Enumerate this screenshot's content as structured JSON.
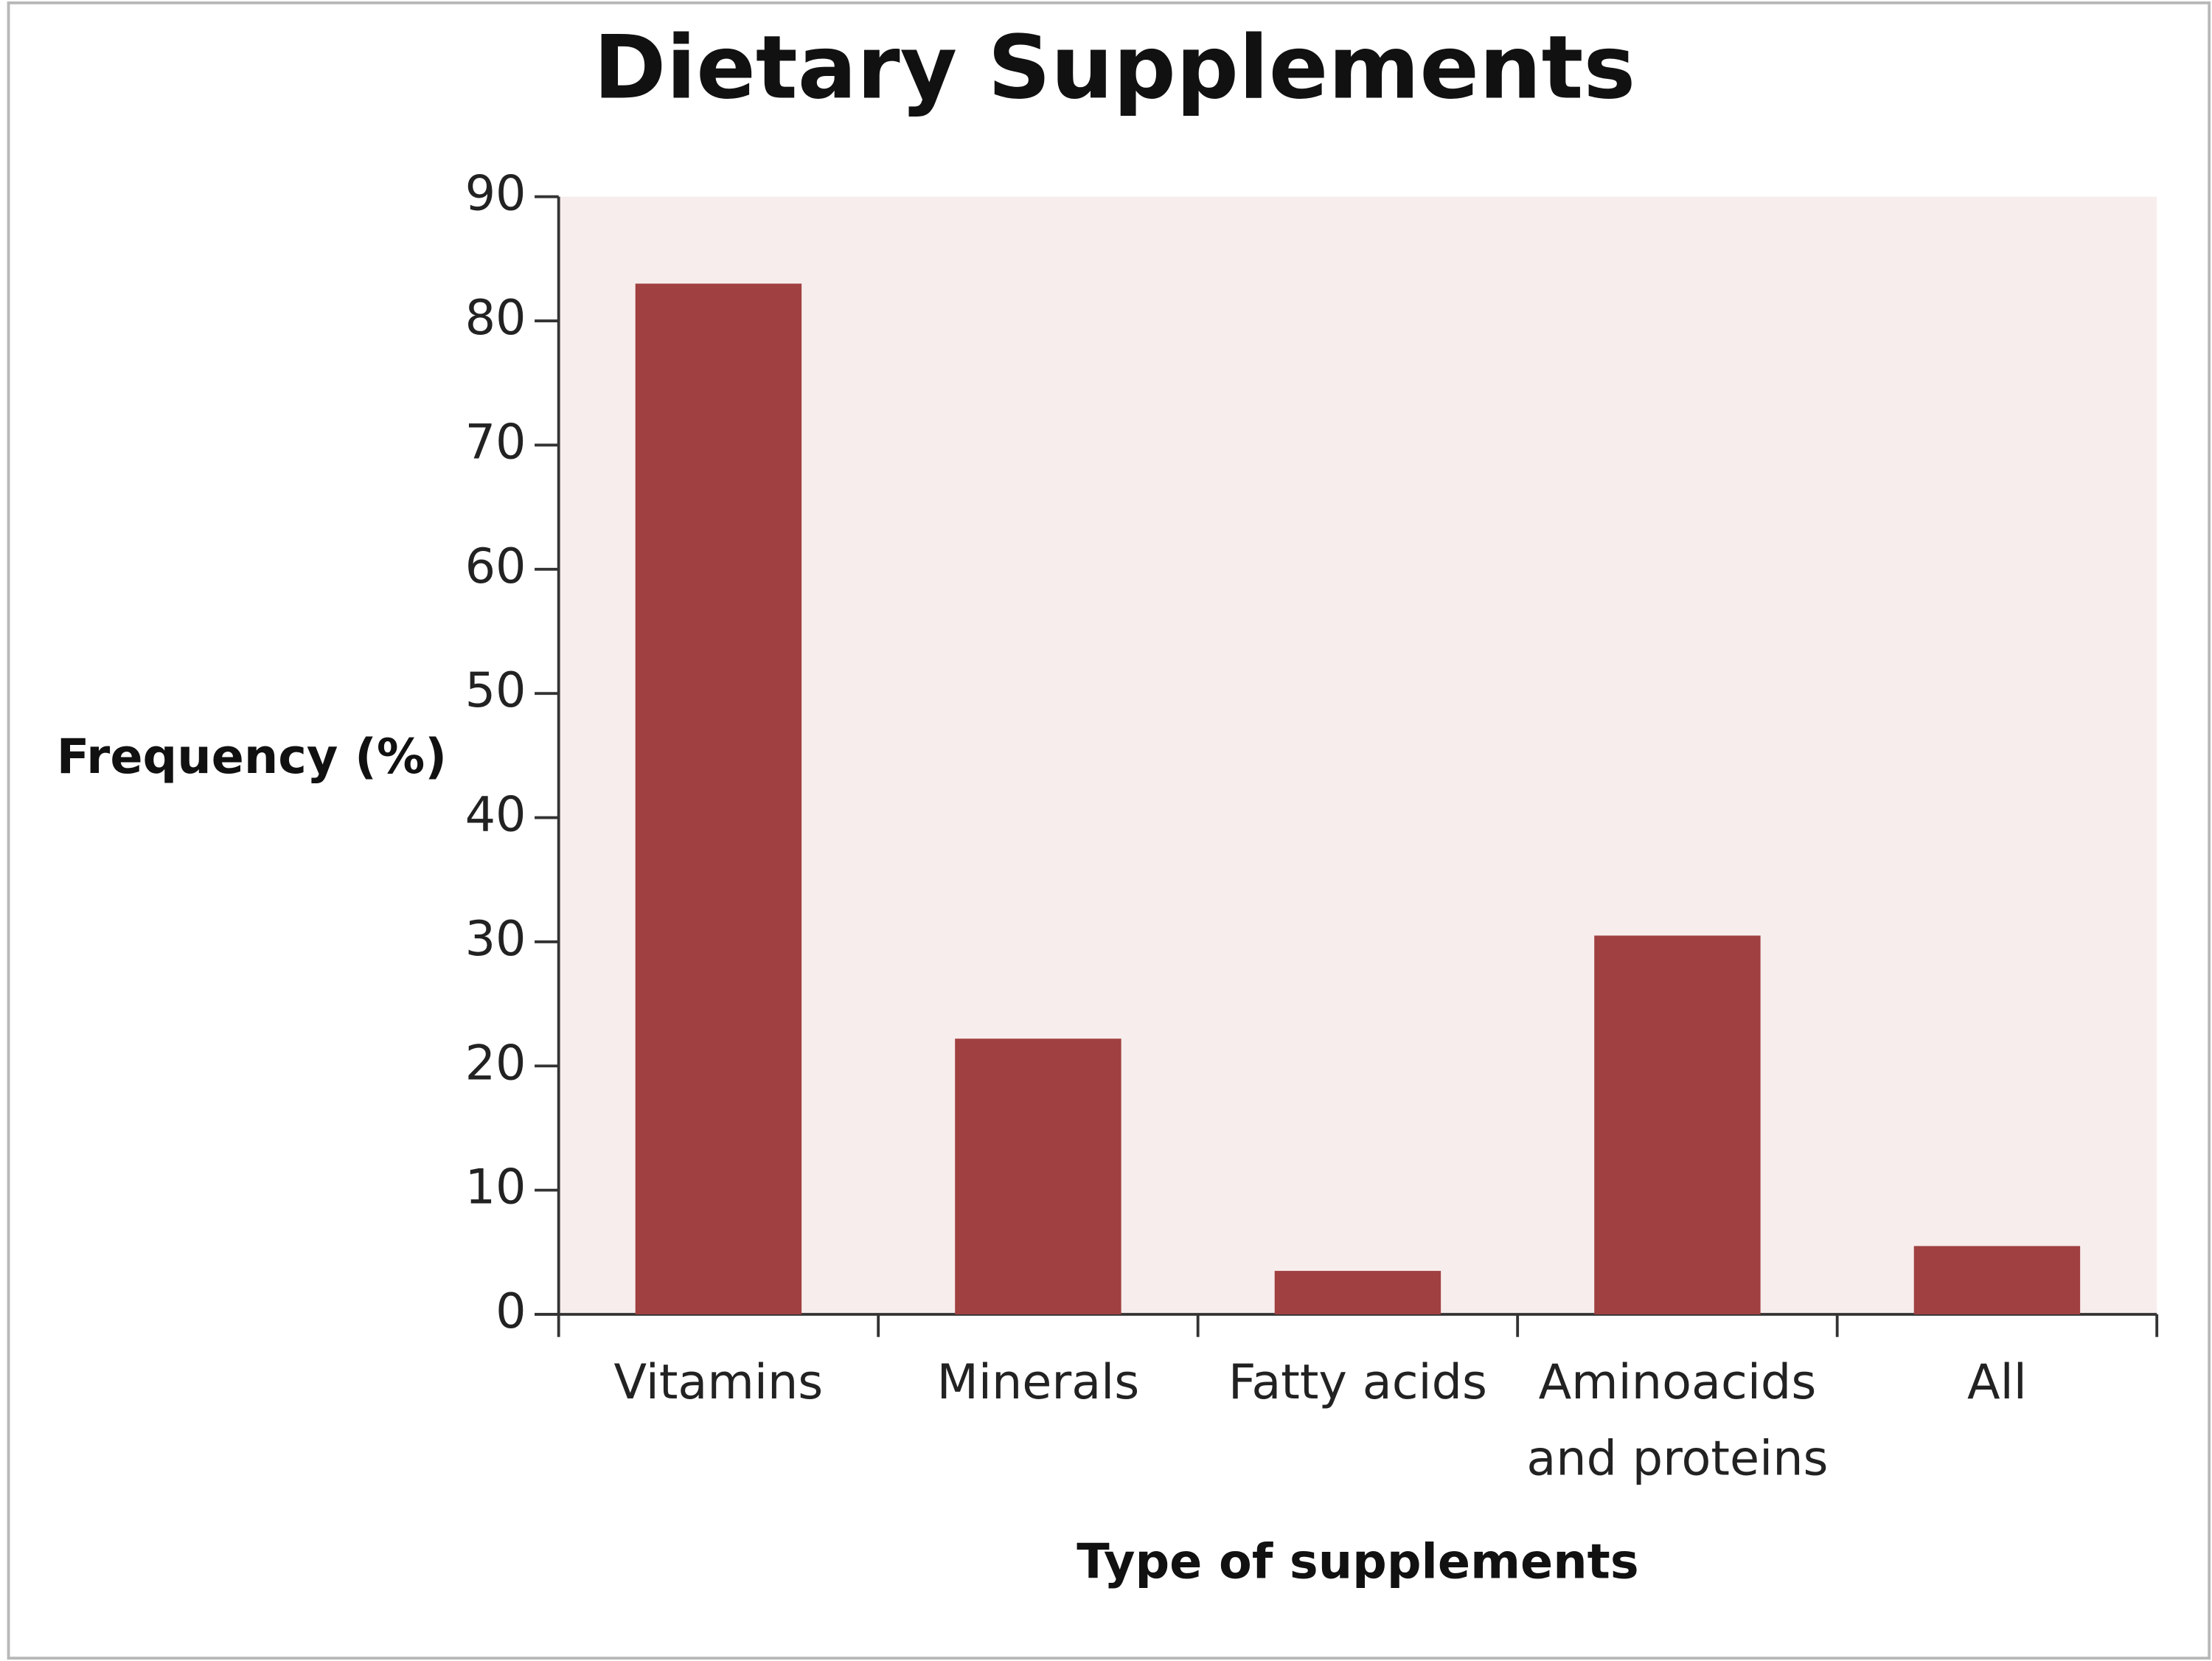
{
  "chart_data": {
    "type": "bar",
    "title": "Dietary Supplements",
    "x_label": "Type of supplements",
    "y_label": "Frequency (%)",
    "categories": [
      "Vitamins",
      "Minerals",
      "Fatty acids",
      "Aminoacids and proteins",
      "All"
    ],
    "values": [
      83,
      22.2,
      3.5,
      30.5,
      5.5
    ],
    "color": "#a04040",
    "ylim": [
      0,
      90
    ],
    "yticks": [
      0,
      10,
      20,
      30,
      40,
      50,
      60,
      70,
      80,
      90
    ],
    "grid": false
  }
}
